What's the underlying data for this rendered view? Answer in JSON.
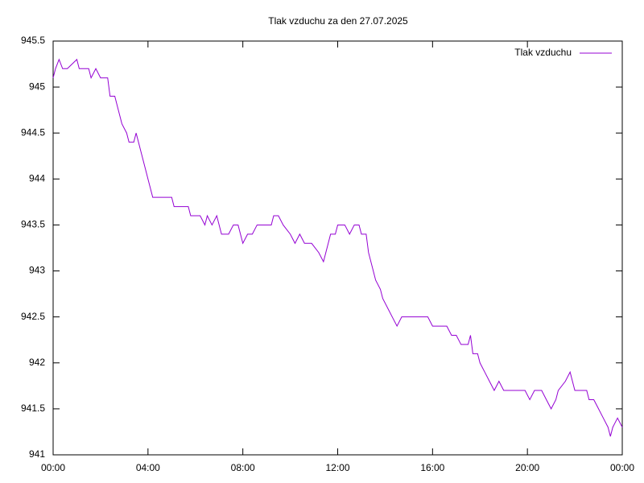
{
  "chart_data": {
    "type": "line",
    "title": "Tlak vzduchu za den 27.07.2025",
    "x": [
      0,
      0.1,
      0.25,
      0.4,
      0.6,
      1.0,
      1.1,
      1.5,
      1.6,
      1.8,
      2.0,
      2.3,
      2.4,
      2.6,
      2.7,
      2.8,
      2.9,
      3.1,
      3.2,
      3.4,
      3.5,
      3.6,
      3.7,
      3.8,
      3.9,
      4.0,
      4.1,
      4.2,
      4.4,
      4.6,
      5.0,
      5.1,
      5.5,
      5.7,
      5.8,
      6.2,
      6.4,
      6.5,
      6.7,
      6.9,
      7.1,
      7.4,
      7.6,
      7.8,
      7.9,
      8.0,
      8.2,
      8.4,
      8.6,
      8.9,
      9.2,
      9.3,
      9.5,
      9.7,
      10.0,
      10.2,
      10.4,
      10.6,
      10.9,
      11.2,
      11.4,
      11.5,
      11.7,
      11.9,
      12.0,
      12.3,
      12.5,
      12.7,
      12.9,
      13.0,
      13.2,
      13.3,
      13.5,
      13.6,
      13.8,
      13.9,
      14.1,
      14.3,
      14.5,
      14.7,
      15.0,
      15.4,
      15.8,
      16.0,
      16.4,
      16.6,
      16.8,
      17.0,
      17.2,
      17.5,
      17.6,
      17.7,
      17.9,
      18.0,
      18.2,
      18.4,
      18.6,
      18.8,
      19.0,
      19.5,
      19.9,
      20.1,
      20.3,
      20.6,
      20.8,
      21.0,
      21.2,
      21.3,
      21.6,
      21.8,
      21.9,
      22.0,
      22.5,
      22.6,
      22.8,
      23.0,
      23.2,
      23.4,
      23.5,
      23.6,
      23.8,
      24.0
    ],
    "series": [
      {
        "name": "Tlak vzduchu",
        "color": "#9400d3",
        "values": [
          945.1,
          945.2,
          945.3,
          945.2,
          945.2,
          945.3,
          945.2,
          945.2,
          945.1,
          945.2,
          945.1,
          945.1,
          944.9,
          944.9,
          944.8,
          944.7,
          944.6,
          944.5,
          944.4,
          944.4,
          944.5,
          944.4,
          944.3,
          944.2,
          944.1,
          944.0,
          943.9,
          943.8,
          943.8,
          943.8,
          943.8,
          943.7,
          943.7,
          943.7,
          943.6,
          943.6,
          943.5,
          943.6,
          943.5,
          943.6,
          943.4,
          943.4,
          943.5,
          943.5,
          943.4,
          943.3,
          943.4,
          943.4,
          943.5,
          943.5,
          943.5,
          943.6,
          943.6,
          943.5,
          943.4,
          943.3,
          943.4,
          943.3,
          943.3,
          943.2,
          943.1,
          943.2,
          943.4,
          943.4,
          943.5,
          943.5,
          943.4,
          943.5,
          943.5,
          943.4,
          943.4,
          943.2,
          943.0,
          942.9,
          942.8,
          942.7,
          942.6,
          942.5,
          942.4,
          942.5,
          942.5,
          942.5,
          942.5,
          942.4,
          942.4,
          942.4,
          942.3,
          942.3,
          942.2,
          942.2,
          942.3,
          942.1,
          942.1,
          942.0,
          941.9,
          941.8,
          941.7,
          941.8,
          941.7,
          941.7,
          941.7,
          941.6,
          941.7,
          941.7,
          941.6,
          941.5,
          941.6,
          941.7,
          941.8,
          941.9,
          941.8,
          941.7,
          941.7,
          941.6,
          941.6,
          941.5,
          941.4,
          941.3,
          941.2,
          941.3,
          941.4,
          941.3
        ]
      }
    ],
    "xlim": [
      0,
      24
    ],
    "xticks": [
      {
        "value": 0,
        "label": "00:00"
      },
      {
        "value": 4,
        "label": "04:00"
      },
      {
        "value": 8,
        "label": "08:00"
      },
      {
        "value": 12,
        "label": "12:00"
      },
      {
        "value": 16,
        "label": "16:00"
      },
      {
        "value": 20,
        "label": "20:00"
      },
      {
        "value": 24,
        "label": "00:00"
      }
    ],
    "ylim": [
      941,
      945.5
    ],
    "yticks": [
      941,
      941.5,
      942,
      942.5,
      943,
      943.5,
      944,
      944.5,
      945,
      945.5
    ],
    "legend": "top-right"
  }
}
